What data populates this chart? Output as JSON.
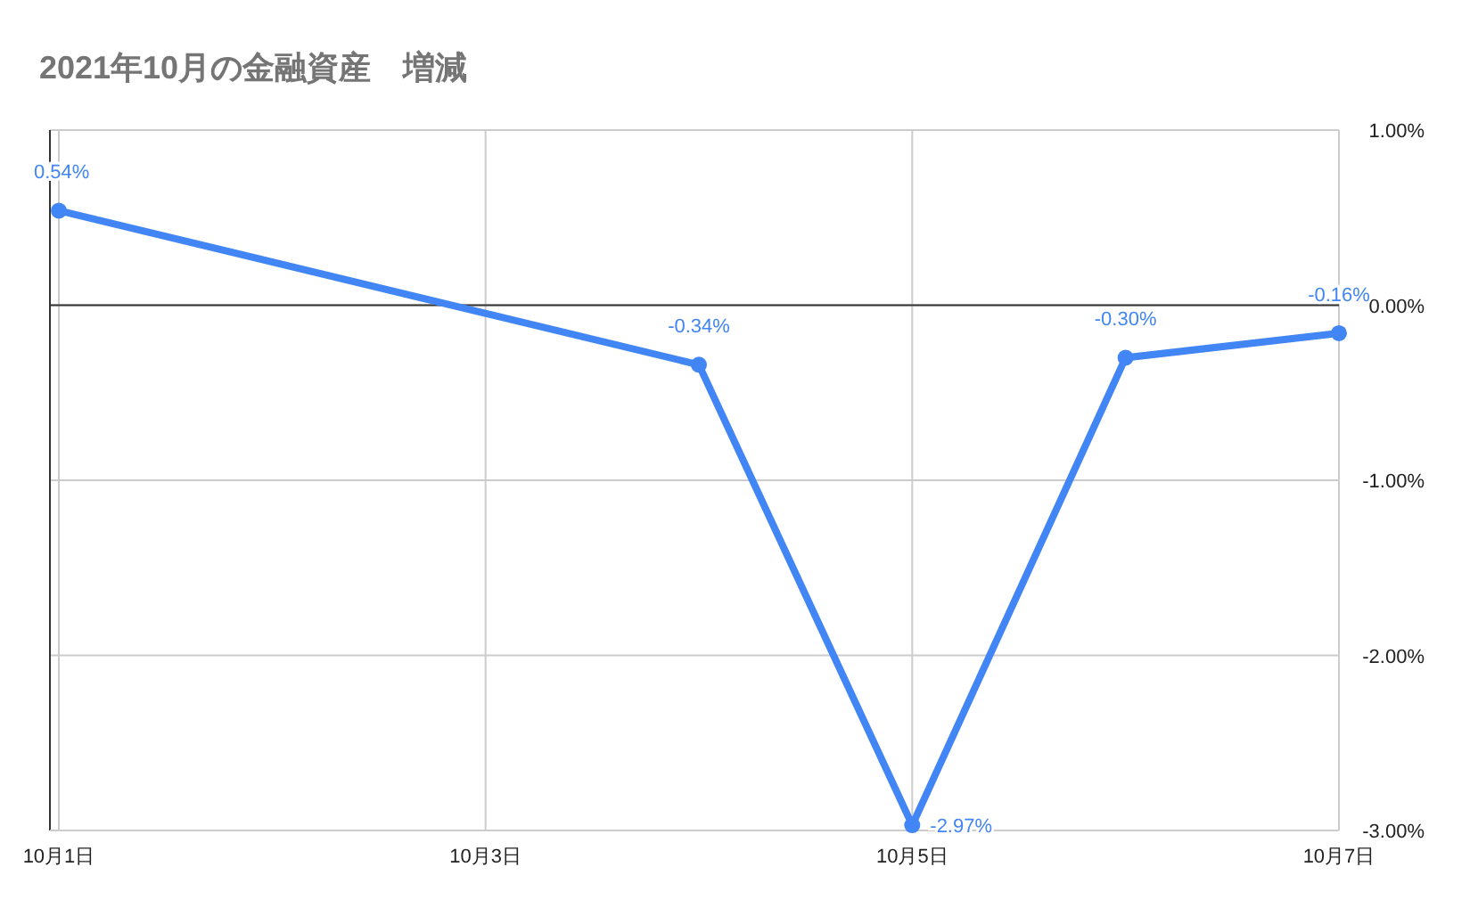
{
  "chart_data": {
    "type": "line",
    "title": "2021年10月の金融資産　増減",
    "x": [
      "--10-01",
      "--10-04",
      "--10-05",
      "--10-06",
      "--10-07"
    ],
    "series": [
      {
        "color": "#4285f4",
        "values": [
          0.54,
          -0.34,
          -2.97,
          -0.3,
          -0.16
        ],
        "value_labels": [
          "0.54%",
          "-0.34%",
          "-2.97%",
          "-0.30%",
          "-0.16%"
        ]
      }
    ],
    "xlim": [
      "--10-01",
      "--10-07"
    ],
    "xticks": [
      {
        "value": "--10-01",
        "label": "10月1日"
      },
      {
        "value": "--10-03",
        "label": "10月3日"
      },
      {
        "value": "--10-05",
        "label": "10月5日"
      },
      {
        "value": "--10-07",
        "label": "10月7日"
      }
    ],
    "ylim": [
      -3,
      1
    ],
    "yticks": [
      {
        "value": 1,
        "label": "1.00%"
      },
      {
        "value": 0,
        "label": "0.00%"
      },
      {
        "value": -1,
        "label": "-1.00%"
      },
      {
        "value": -2,
        "label": "-2.00%"
      },
      {
        "value": -3,
        "label": "-3.00%"
      }
    ],
    "ref_lines": [
      {
        "axis": "y",
        "value": 0,
        "color": "#333333"
      }
    ],
    "grid": true,
    "marker": "circle",
    "line_style": "solid"
  }
}
